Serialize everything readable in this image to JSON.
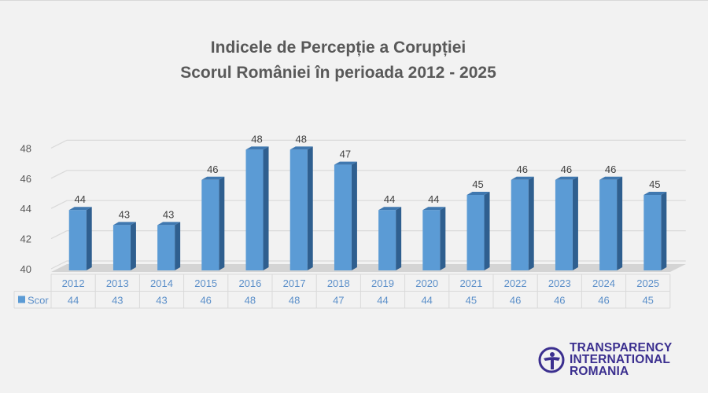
{
  "chart_data": {
    "type": "bar",
    "title": "Indicele de Percepție a Corupției",
    "subtitle": "Scorul României în perioada 2012 - 2025",
    "categories": [
      "2012",
      "2013",
      "2014",
      "2015",
      "2016",
      "2017",
      "2018",
      "2019",
      "2020",
      "2021",
      "2022",
      "2023",
      "2024",
      "2025"
    ],
    "series": [
      {
        "name": "Scor",
        "values": [
          44,
          43,
          43,
          46,
          48,
          48,
          47,
          44,
          44,
          45,
          46,
          46,
          46,
          45
        ]
      }
    ],
    "ylim": [
      40,
      48
    ],
    "yticks": [
      40,
      42,
      44,
      46,
      48
    ],
    "grid": true,
    "legend": "data-table",
    "colors": {
      "bar": "#5b9bd5",
      "bar_side": "#2f5f8f",
      "table_text": "#5b8fc9"
    }
  },
  "logo": {
    "lines": [
      "TRANSPARENCY",
      "INTERNATIONAL",
      "ROMANIA"
    ]
  }
}
